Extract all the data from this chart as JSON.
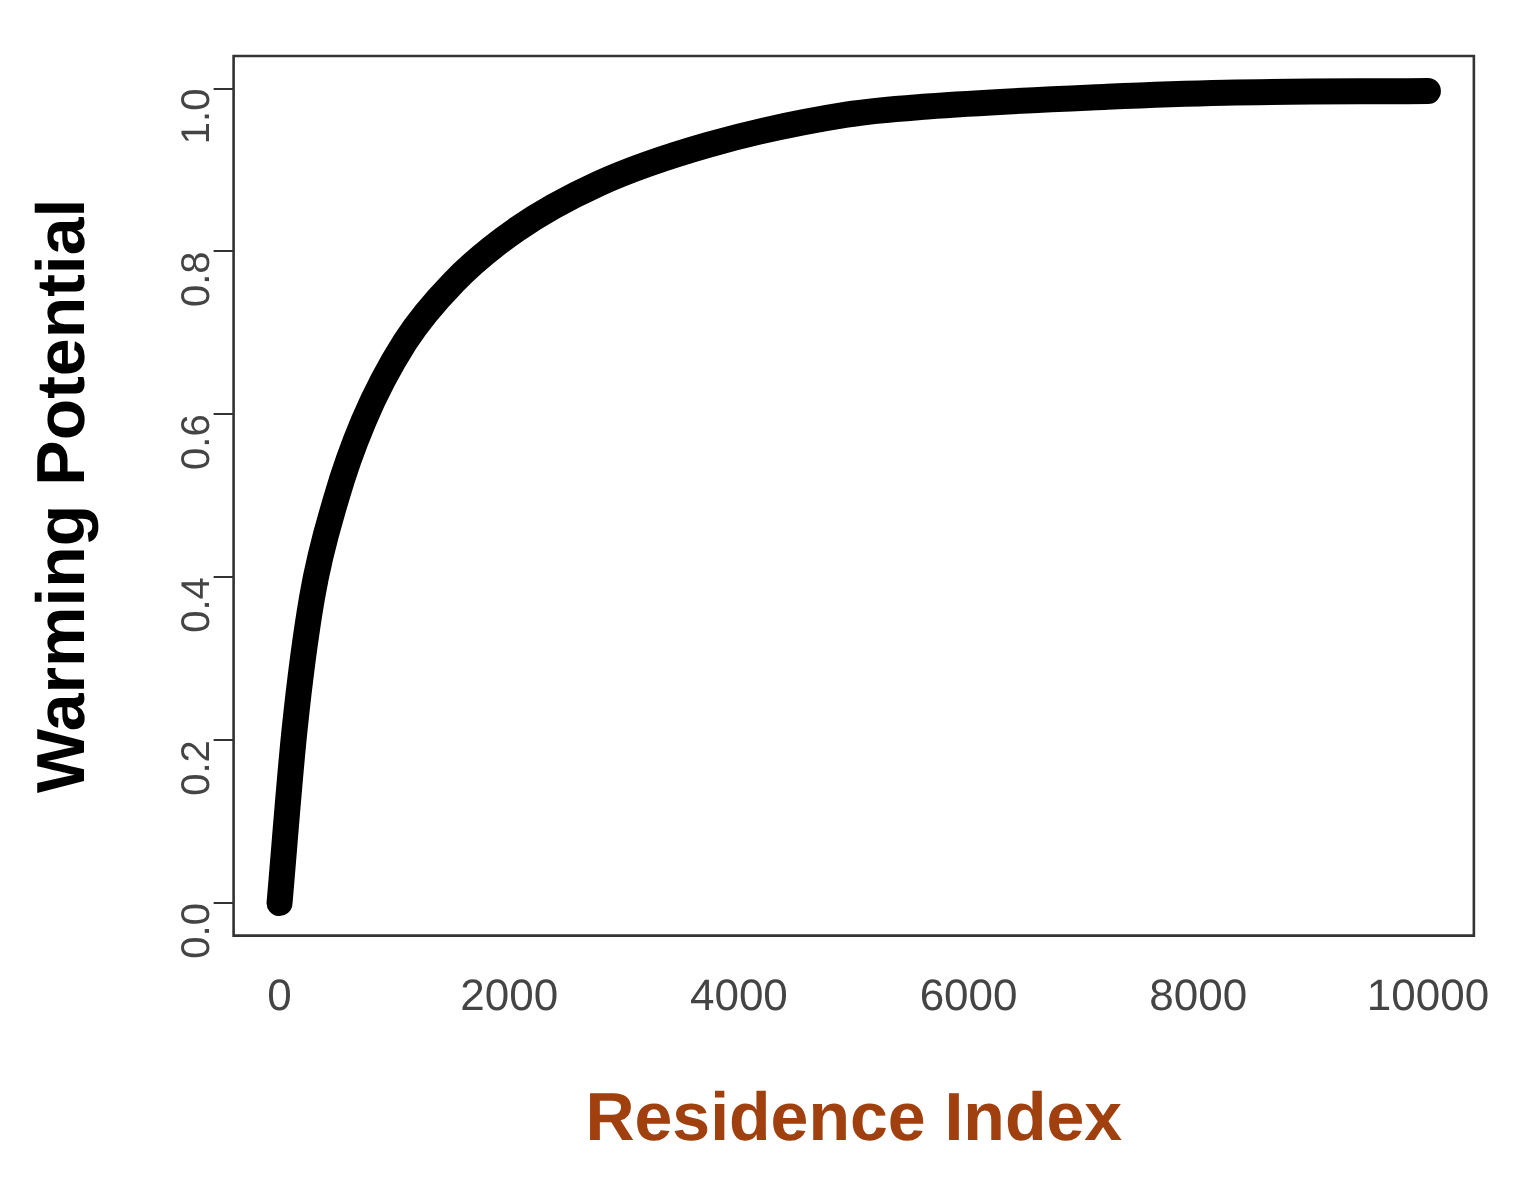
{
  "chart_data": {
    "type": "line",
    "xlabel": "Residence Index",
    "ylabel": "Warming Potential",
    "series": [
      {
        "color": "#000000",
        "x": [
          0,
          131,
          283,
          492,
          733,
          1093,
          1514,
          2054,
          2775,
          3735,
          4937,
          5640,
          7207,
          8234,
          10000
        ],
        "values": [
          0.0,
          0.213,
          0.375,
          0.496,
          0.592,
          0.689,
          0.762,
          0.826,
          0.883,
          0.931,
          0.968,
          0.978,
          0.99,
          0.995,
          0.997
        ]
      }
    ],
    "xlim": [
      -400,
      10400
    ],
    "ylim": [
      -0.04,
      1.04
    ],
    "xticks": [
      0,
      2000,
      4000,
      6000,
      8000,
      10000
    ],
    "yticks": [
      {
        "value": 0,
        "label": "0.0"
      },
      {
        "value": 0.2,
        "label": "0.2"
      },
      {
        "value": 0.4,
        "label": "0.4"
      },
      {
        "value": 0.6,
        "label": "0.6"
      },
      {
        "value": 0.8,
        "label": "0.8"
      },
      {
        "value": 1,
        "label": "1.0"
      }
    ],
    "grid": false,
    "legend": false,
    "marker": "none",
    "line_style": "solid"
  }
}
